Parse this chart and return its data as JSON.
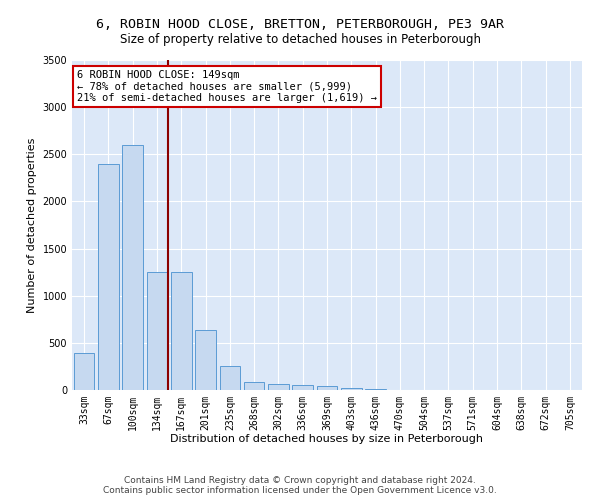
{
  "title": "6, ROBIN HOOD CLOSE, BRETTON, PETERBOROUGH, PE3 9AR",
  "subtitle": "Size of property relative to detached houses in Peterborough",
  "xlabel": "Distribution of detached houses by size in Peterborough",
  "ylabel": "Number of detached properties",
  "categories": [
    "33sqm",
    "67sqm",
    "100sqm",
    "134sqm",
    "167sqm",
    "201sqm",
    "235sqm",
    "268sqm",
    "302sqm",
    "336sqm",
    "369sqm",
    "403sqm",
    "436sqm",
    "470sqm",
    "504sqm",
    "537sqm",
    "571sqm",
    "604sqm",
    "638sqm",
    "672sqm",
    "705sqm"
  ],
  "values": [
    390,
    2400,
    2600,
    1250,
    1250,
    640,
    250,
    90,
    60,
    55,
    40,
    20,
    10,
    5,
    3,
    2,
    1,
    1,
    0,
    0,
    0
  ],
  "bar_color": "#c6d9f0",
  "bar_edgecolor": "#5b9bd5",
  "vline_color": "#8b0000",
  "annotation_line1": "6 ROBIN HOOD CLOSE: 149sqm",
  "annotation_line2": "← 78% of detached houses are smaller (5,999)",
  "annotation_line3": "21% of semi-detached houses are larger (1,619) →",
  "annotation_box_edgecolor": "#cc0000",
  "ylim": [
    0,
    3500
  ],
  "yticks": [
    0,
    500,
    1000,
    1500,
    2000,
    2500,
    3000,
    3500
  ],
  "background_color": "#dce8f8",
  "grid_color": "#ffffff",
  "footer_line1": "Contains HM Land Registry data © Crown copyright and database right 2024.",
  "footer_line2": "Contains public sector information licensed under the Open Government Licence v3.0.",
  "title_fontsize": 9.5,
  "subtitle_fontsize": 8.5,
  "axis_label_fontsize": 8,
  "tick_fontsize": 7,
  "footer_fontsize": 6.5,
  "annot_fontsize": 7.5
}
